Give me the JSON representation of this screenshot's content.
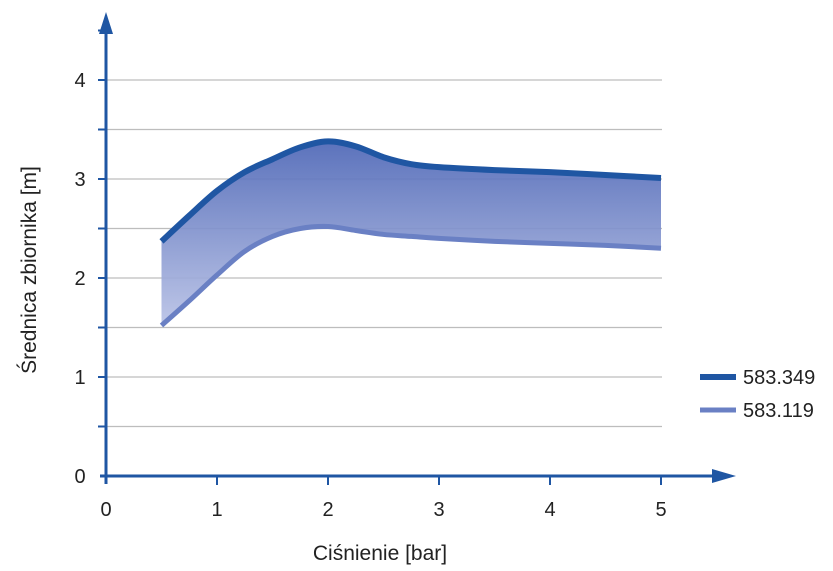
{
  "chart_data": {
    "type": "area",
    "xlabel": "Ciśnienie [bar]",
    "ylabel": "Średnica zbiornika [m]",
    "xlim": [
      0,
      5.5
    ],
    "ylim": [
      0,
      4.5
    ],
    "x_ticks": [
      "0",
      "1",
      "2",
      "3",
      "4",
      "5"
    ],
    "y_ticks": [
      "0",
      "1",
      "2",
      "3",
      "4"
    ],
    "grid": true,
    "legend_position": "right",
    "series": [
      {
        "name": "583.349",
        "color": "#1f56a3",
        "x": [
          0.5,
          0.75,
          1.0,
          1.25,
          1.5,
          1.75,
          2.0,
          2.25,
          2.5,
          2.75,
          3.0,
          3.5,
          4.0,
          4.5,
          5.0
        ],
        "values": [
          2.37,
          2.63,
          2.88,
          3.07,
          3.2,
          3.32,
          3.38,
          3.33,
          3.22,
          3.15,
          3.12,
          3.09,
          3.07,
          3.04,
          3.01
        ]
      },
      {
        "name": "583.119",
        "color": "#6a80c4",
        "x": [
          0.5,
          0.75,
          1.0,
          1.25,
          1.5,
          1.75,
          2.0,
          2.25,
          2.5,
          2.75,
          3.0,
          3.5,
          4.0,
          4.5,
          5.0
        ],
        "values": [
          1.52,
          1.77,
          2.03,
          2.27,
          2.42,
          2.5,
          2.52,
          2.48,
          2.44,
          2.42,
          2.4,
          2.37,
          2.35,
          2.33,
          2.3
        ]
      }
    ],
    "fill_between": true,
    "fill_color_top": "#4d66b6",
    "fill_color_bottom": "#b9c2e6"
  }
}
